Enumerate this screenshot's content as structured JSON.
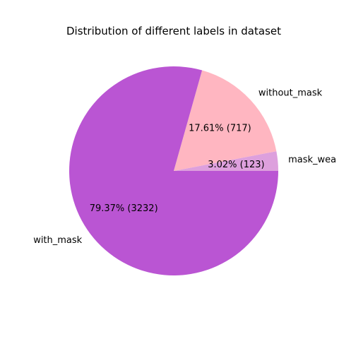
{
  "chart_data": {
    "type": "pie",
    "title": "Distribution of different labels in dataset",
    "start_angle_deg": 0,
    "direction": "counterclockwise",
    "slices": [
      {
        "label": "mask_wea",
        "value": 123,
        "percent_label": "3.02%  (123)",
        "color": "#dda0dd"
      },
      {
        "label": "without_mask",
        "value": 717,
        "percent_label": "17.61%  (717)",
        "color": "#ffb6c1"
      },
      {
        "label": "with_mask",
        "value": 3232,
        "percent_label": "79.37%  (3232)",
        "color": "#ba55d3"
      }
    ]
  }
}
